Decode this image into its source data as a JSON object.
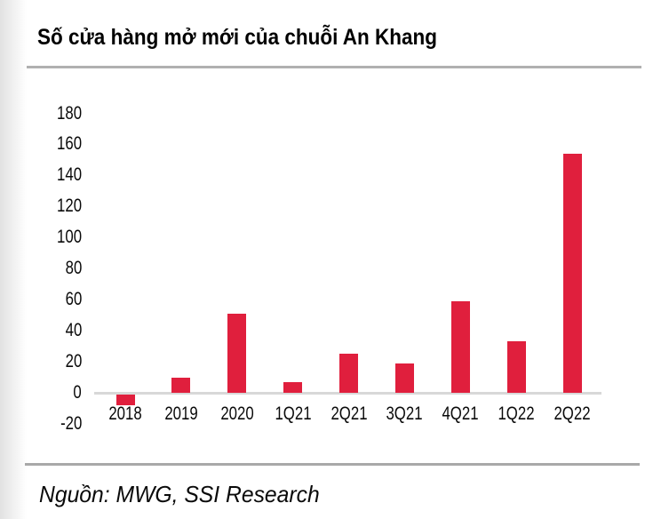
{
  "title": "Số cửa hàng mở mới của chuỗi An Khang",
  "source": "Nguồn: MWG, SSI Research",
  "colors": {
    "bar": "#e01f3d",
    "axis_line": "#d8d8d8",
    "separator": "#b0b0b0",
    "text": "#0a0a0a"
  },
  "chart_data": {
    "type": "bar",
    "title": "Số cửa hàng mở mới của chuỗi An Khang",
    "categories": [
      "2018",
      "2019",
      "2020",
      "1Q21",
      "2Q21",
      "3Q21",
      "4Q21",
      "1Q22",
      "2Q22"
    ],
    "values": [
      -7,
      10,
      51,
      7,
      25,
      19,
      59,
      33,
      154
    ],
    "xlabel": "",
    "ylabel": "",
    "ylim": [
      -20,
      180
    ],
    "yticks": [
      -20,
      0,
      20,
      40,
      60,
      80,
      100,
      120,
      140,
      160,
      180
    ],
    "grid": false,
    "legend": null,
    "bar_color": "#e01f3d",
    "source": "Nguồn: MWG, SSI Research"
  }
}
